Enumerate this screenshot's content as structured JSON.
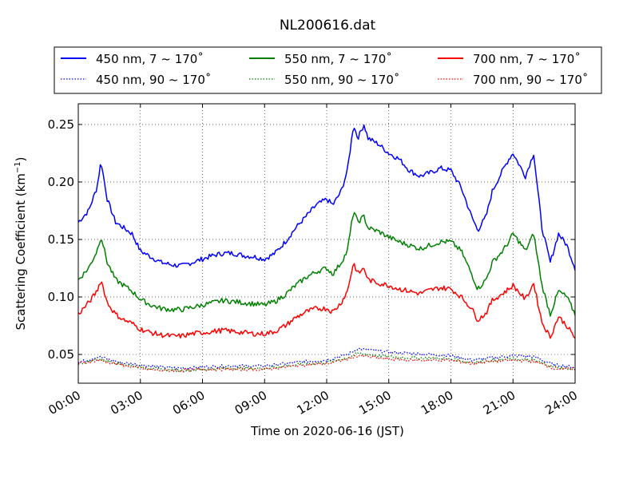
{
  "chart_data": {
    "type": "line",
    "title": "NL200616.dat",
    "xlabel": "Time on 2020-06-16 (JST)",
    "ylabel_main": "Scattering Coefficient (km",
    "ylabel_sup": "−1",
    "ylabel_end": ")",
    "xlim": [
      0,
      24
    ],
    "ylim": [
      0.025,
      0.268
    ],
    "x_ticks": [
      0,
      3,
      6,
      9,
      12,
      15,
      18,
      21,
      24
    ],
    "x_tick_labels": [
      "00:00",
      "03:00",
      "06:00",
      "09:00",
      "12:00",
      "15:00",
      "18:00",
      "21:00",
      "24:00"
    ],
    "y_ticks": [
      0.05,
      0.1,
      0.15,
      0.2,
      0.25
    ],
    "y_tick_labels": [
      "0.05",
      "0.10",
      "0.15",
      "0.20",
      "0.25"
    ],
    "grid": true,
    "legend_position": "top",
    "colors": {
      "blue": "#0000ff",
      "green": "#008000",
      "red": "#ff0000"
    },
    "series": [
      {
        "name": "450 nm, 7 ~ 170˚",
        "color": "#0000ff",
        "style": "solid",
        "x": [
          0,
          0.5,
          0.9,
          1.1,
          1.4,
          1.8,
          2.2,
          2.6,
          3,
          3.5,
          4,
          4.5,
          5,
          5.5,
          6,
          6.5,
          7,
          7.5,
          8,
          8.5,
          9,
          9.5,
          10,
          10.5,
          11,
          11.5,
          12,
          12.3,
          12.7,
          13,
          13.3,
          13.5,
          13.8,
          14,
          14.5,
          15,
          15.5,
          16,
          16.5,
          17,
          17.5,
          18,
          18.5,
          19,
          19.3,
          19.7,
          20,
          20.5,
          20.8,
          21,
          21.3,
          21.6,
          22,
          22.4,
          22.8,
          23.2,
          23.6,
          24
        ],
        "values": [
          0.165,
          0.175,
          0.195,
          0.218,
          0.185,
          0.165,
          0.16,
          0.155,
          0.14,
          0.135,
          0.13,
          0.128,
          0.127,
          0.13,
          0.133,
          0.136,
          0.138,
          0.138,
          0.136,
          0.135,
          0.133,
          0.138,
          0.148,
          0.16,
          0.17,
          0.18,
          0.185,
          0.18,
          0.192,
          0.21,
          0.25,
          0.238,
          0.25,
          0.238,
          0.233,
          0.225,
          0.22,
          0.21,
          0.205,
          0.208,
          0.212,
          0.21,
          0.195,
          0.17,
          0.158,
          0.17,
          0.192,
          0.21,
          0.22,
          0.225,
          0.215,
          0.205,
          0.225,
          0.16,
          0.13,
          0.155,
          0.145,
          0.125
        ]
      },
      {
        "name": "450 nm, 90 ~ 170˚",
        "color": "#0000ff",
        "style": "dotted",
        "x": [
          0,
          1,
          2,
          3,
          4,
          5,
          6,
          7,
          8,
          9,
          10,
          11,
          12,
          13,
          13.5,
          14,
          15,
          16,
          17,
          18,
          19,
          20,
          21,
          22,
          23,
          24
        ],
        "values": [
          0.043,
          0.048,
          0.043,
          0.041,
          0.039,
          0.038,
          0.039,
          0.04,
          0.04,
          0.04,
          0.042,
          0.044,
          0.045,
          0.05,
          0.055,
          0.054,
          0.052,
          0.051,
          0.05,
          0.049,
          0.045,
          0.047,
          0.049,
          0.048,
          0.041,
          0.039
        ]
      },
      {
        "name": "550 nm, 7 ~ 170˚",
        "color": "#008000",
        "style": "solid",
        "x": [
          0,
          0.5,
          0.9,
          1.1,
          1.4,
          1.8,
          2.2,
          2.6,
          3,
          3.5,
          4,
          4.5,
          5,
          5.5,
          6,
          6.5,
          7,
          7.5,
          8,
          8.5,
          9,
          9.5,
          10,
          10.5,
          11,
          11.5,
          12,
          12.3,
          12.7,
          13,
          13.3,
          13.5,
          13.8,
          14,
          14.5,
          15,
          15.5,
          16,
          16.5,
          17,
          17.5,
          18,
          18.5,
          19,
          19.3,
          19.7,
          20,
          20.5,
          20.8,
          21,
          21.3,
          21.6,
          22,
          22.4,
          22.8,
          23.2,
          23.6,
          24
        ],
        "values": [
          0.115,
          0.125,
          0.14,
          0.153,
          0.13,
          0.115,
          0.11,
          0.105,
          0.098,
          0.093,
          0.09,
          0.089,
          0.089,
          0.091,
          0.093,
          0.095,
          0.097,
          0.096,
          0.095,
          0.094,
          0.093,
          0.096,
          0.102,
          0.11,
          0.117,
          0.122,
          0.125,
          0.12,
          0.13,
          0.14,
          0.175,
          0.165,
          0.17,
          0.16,
          0.157,
          0.152,
          0.148,
          0.145,
          0.142,
          0.145,
          0.148,
          0.148,
          0.14,
          0.12,
          0.107,
          0.115,
          0.13,
          0.14,
          0.148,
          0.155,
          0.148,
          0.14,
          0.155,
          0.11,
          0.085,
          0.105,
          0.1,
          0.085
        ]
      },
      {
        "name": "550 nm, 90 ~ 170˚",
        "color": "#008000",
        "style": "dotted",
        "x": [
          0,
          1,
          2,
          3,
          4,
          5,
          6,
          7,
          8,
          9,
          10,
          11,
          12,
          13,
          13.5,
          14,
          15,
          16,
          17,
          18,
          19,
          20,
          21,
          22,
          23,
          24
        ],
        "values": [
          0.042,
          0.046,
          0.042,
          0.039,
          0.037,
          0.036,
          0.037,
          0.038,
          0.038,
          0.038,
          0.04,
          0.042,
          0.043,
          0.047,
          0.051,
          0.05,
          0.048,
          0.047,
          0.047,
          0.046,
          0.043,
          0.045,
          0.046,
          0.045,
          0.039,
          0.037
        ]
      },
      {
        "name": "700 nm, 7 ~ 170˚",
        "color": "#ff0000",
        "style": "solid",
        "x": [
          0,
          0.5,
          0.9,
          1.1,
          1.4,
          1.8,
          2.2,
          2.6,
          3,
          3.5,
          4,
          4.5,
          5,
          5.5,
          6,
          6.5,
          7,
          7.5,
          8,
          8.5,
          9,
          9.5,
          10,
          10.5,
          11,
          11.5,
          12,
          12.3,
          12.7,
          13,
          13.3,
          13.5,
          13.8,
          14,
          14.5,
          15,
          15.5,
          16,
          16.5,
          17,
          17.5,
          18,
          18.5,
          19,
          19.3,
          19.7,
          20,
          20.5,
          20.8,
          21,
          21.3,
          21.6,
          22,
          22.4,
          22.8,
          23.2,
          23.6,
          24
        ],
        "values": [
          0.085,
          0.095,
          0.105,
          0.115,
          0.095,
          0.085,
          0.08,
          0.077,
          0.072,
          0.069,
          0.067,
          0.066,
          0.066,
          0.068,
          0.069,
          0.07,
          0.071,
          0.07,
          0.069,
          0.068,
          0.068,
          0.07,
          0.075,
          0.082,
          0.087,
          0.09,
          0.09,
          0.087,
          0.095,
          0.105,
          0.13,
          0.12,
          0.125,
          0.115,
          0.112,
          0.11,
          0.107,
          0.105,
          0.103,
          0.106,
          0.108,
          0.107,
          0.1,
          0.09,
          0.08,
          0.086,
          0.097,
          0.103,
          0.107,
          0.11,
          0.104,
          0.098,
          0.112,
          0.078,
          0.065,
          0.083,
          0.075,
          0.064
        ]
      },
      {
        "name": "700 nm, 90 ~ 170˚",
        "color": "#ff0000",
        "style": "dotted",
        "x": [
          0,
          1,
          2,
          3,
          4,
          5,
          6,
          7,
          8,
          9,
          10,
          11,
          12,
          13,
          13.5,
          14,
          15,
          16,
          17,
          18,
          19,
          20,
          21,
          22,
          23,
          24
        ],
        "values": [
          0.042,
          0.045,
          0.041,
          0.038,
          0.036,
          0.036,
          0.037,
          0.037,
          0.037,
          0.037,
          0.039,
          0.041,
          0.042,
          0.046,
          0.049,
          0.048,
          0.046,
          0.045,
          0.045,
          0.045,
          0.042,
          0.044,
          0.045,
          0.044,
          0.038,
          0.037
        ]
      }
    ]
  }
}
